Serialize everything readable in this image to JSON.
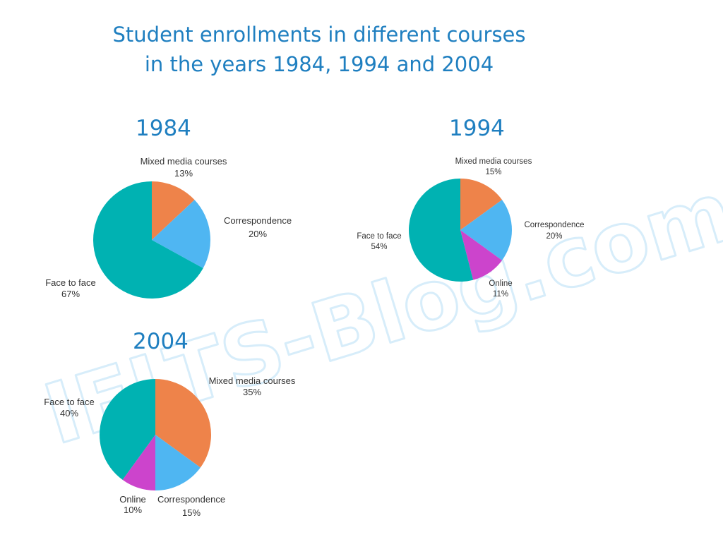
{
  "title": {
    "line1": "Student enrollments in different courses",
    "line2": "in the years 1984, 1994 and 2004"
  },
  "watermark": "IELTS-Blog.com",
  "colors": {
    "title": "#1f7fc0",
    "Face to face": "#00b2b2",
    "Mixed media courses": "#ee834a",
    "Correspondence": "#4fb6f2",
    "Online": "#cc44cc"
  },
  "chart_data": [
    {
      "type": "pie",
      "title": "1984",
      "slices": [
        {
          "label": "Mixed media courses",
          "value": 13,
          "value_label": "13%"
        },
        {
          "label": "Correspondence",
          "value": 20,
          "value_label": "20%"
        },
        {
          "label": "Face to face",
          "value": 67,
          "value_label": "67%"
        }
      ]
    },
    {
      "type": "pie",
      "title": "1994",
      "slices": [
        {
          "label": "Mixed media courses",
          "value": 15,
          "value_label": "15%"
        },
        {
          "label": "Correspondence",
          "value": 20,
          "value_label": "20%"
        },
        {
          "label": "Online",
          "value": 11,
          "value_label": "11%"
        },
        {
          "label": "Face to face",
          "value": 54,
          "value_label": "54%"
        }
      ]
    },
    {
      "type": "pie",
      "title": "2004",
      "slices": [
        {
          "label": "Mixed media courses",
          "value": 35,
          "value_label": "35%"
        },
        {
          "label": "Correspondence",
          "value": 15,
          "value_label": "15%"
        },
        {
          "label": "Online",
          "value": 10,
          "value_label": "10%"
        },
        {
          "label": "Face to face",
          "value": 40,
          "value_label": "40%"
        }
      ]
    }
  ]
}
